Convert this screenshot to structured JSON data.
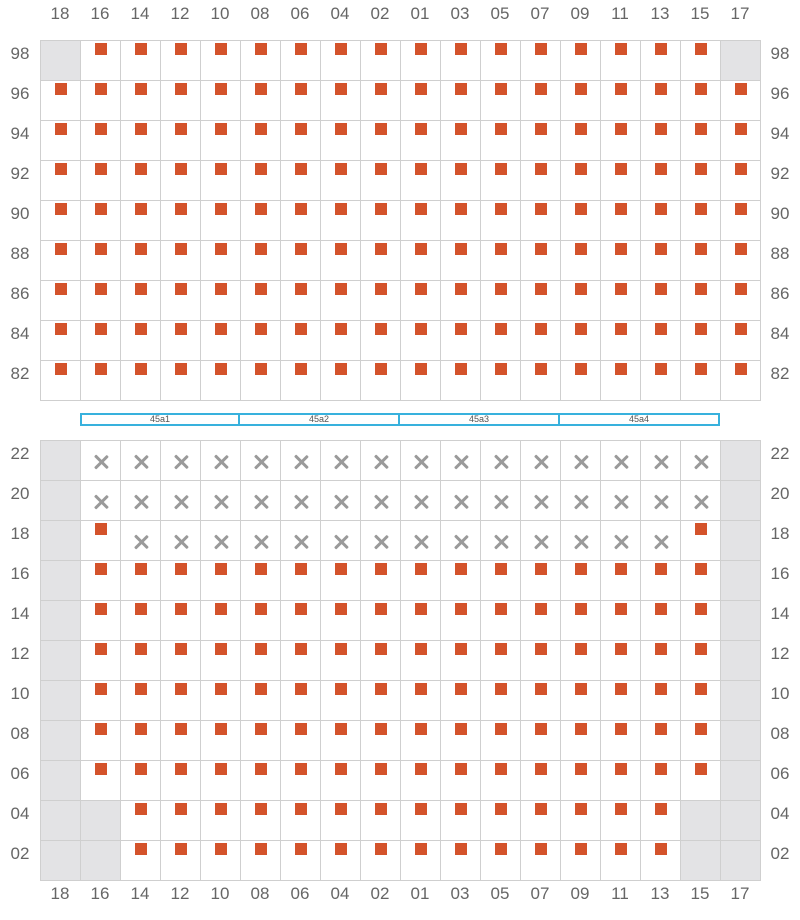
{
  "columns": [
    "18",
    "16",
    "14",
    "12",
    "10",
    "08",
    "06",
    "04",
    "02",
    "01",
    "03",
    "05",
    "07",
    "09",
    "11",
    "13",
    "15",
    "17"
  ],
  "upper_block": {
    "rows": [
      "98",
      "96",
      "94",
      "92",
      "90",
      "88",
      "86",
      "84",
      "82"
    ],
    "cells": [
      "BSSSSSSSSSSSSSSSSB",
      "SSSSSSSSSSSSSSSSSS",
      "SSSSSSSSSSSSSSSSSS",
      "SSSSSSSSSSSSSSSSSS",
      "SSSSSSSSSSSSSSSSSS",
      "SSSSSSSSSSSSSSSSSS",
      "SSSSSSSSSSSSSSSSSS",
      "SSSSSSSSSSSSSSSSSS",
      "SSSSSSSSSSSSSSSSSS"
    ]
  },
  "sections": [
    "45a1",
    "45a2",
    "45a3",
    "45a4"
  ],
  "lower_block": {
    "rows": [
      "22",
      "20",
      "18",
      "16",
      "14",
      "12",
      "10",
      "08",
      "06",
      "04",
      "02"
    ],
    "cells": [
      "BXXXXXXXXXXXXXXXXB",
      "BXXXXXXXXXXXXXXXXB",
      "BSXXXXXXXXXXXXXXSB",
      "BSSSSSSSSSSSSSSSSB",
      "BSSSSSSSSSSSSSSSSB",
      "BSSSSSSSSSSSSSSSSB",
      "BSSSSSSSSSSSSSSSSB",
      "BSSSSSSSSSSSSSSSSB",
      "BSSSSSSSSSSSSSSSSB",
      "BBSSSSSSSSSSSSSSBB",
      "BBSSSSSSSSSSSSSSBB"
    ]
  },
  "legend_codes": {
    "S": "available-seat",
    "X": "taken-seat",
    "B": "blocked",
    "E": "empty"
  },
  "colors": {
    "seat": "#d4532b",
    "taken": "#9a9a9a",
    "blocked": "#e3e3e5",
    "grid": "#cfcfcf",
    "section_border": "#38b1dd"
  }
}
